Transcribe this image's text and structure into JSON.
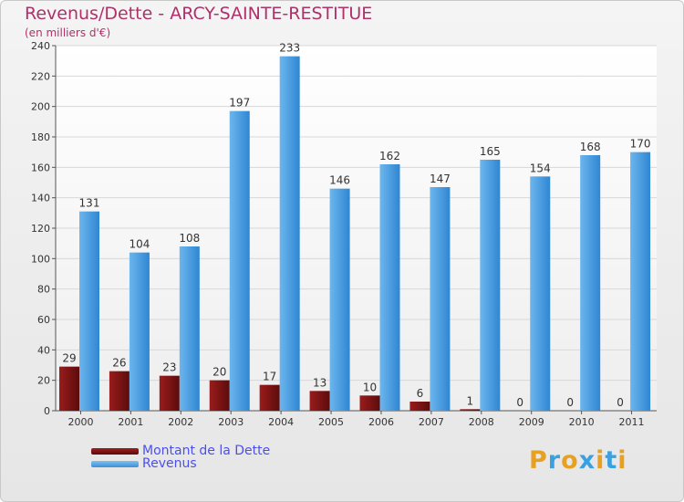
{
  "chart_data": {
    "type": "bar",
    "title": "Revenus/Dette - ARCY-SAINTE-RESTITUE",
    "subtitle": "(en milliers d'€)",
    "categories": [
      "2000",
      "2001",
      "2002",
      "2003",
      "2004",
      "2005",
      "2006",
      "2007",
      "2008",
      "2009",
      "2010",
      "2011"
    ],
    "series": [
      {
        "name": "Montant de la Dette",
        "color": "#7a1212",
        "values": [
          29,
          26,
          23,
          20,
          17,
          13,
          10,
          6,
          1,
          0,
          0,
          0
        ]
      },
      {
        "name": "Revenus",
        "color": "#4a9fe0",
        "values": [
          131,
          104,
          108,
          197,
          233,
          146,
          162,
          147,
          165,
          154,
          168,
          170
        ]
      }
    ],
    "ylim": [
      0,
      240
    ],
    "yticks": [
      0,
      20,
      40,
      60,
      80,
      100,
      120,
      140,
      160,
      180,
      200,
      220,
      240
    ],
    "grid": true,
    "legend": "bottom-left"
  },
  "brand": {
    "letters": [
      "P",
      "r",
      "o",
      "x",
      "i",
      "t",
      "i"
    ],
    "colors": [
      "#e8a020",
      "#3aa0e0",
      "#e8a020",
      "#3aa0e0",
      "#e8a020",
      "#3aa0e0",
      "#e8a020"
    ]
  }
}
